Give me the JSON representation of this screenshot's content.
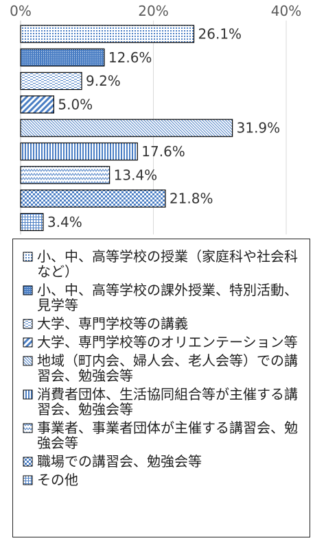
{
  "chart_data": {
    "type": "bar",
    "orientation": "horizontal",
    "categories": [
      "小、中、高等学校の授業（家庭科や社会科など）",
      "小、中、高等学校の課外授業、特別活動、見学等",
      "大学、専門学校等の講義",
      "大学、専門学校等のオリエンテーション等",
      "地域（町内会、婦人会、老人会等）での講習会、勉強会等",
      "消費者団体、生活協同組合等が主催する講習会、勉強会等",
      "事業者、事業者団体が主催する講習会、勉強会等",
      "職場での講習会、勉強会等",
      "その他"
    ],
    "values": [
      26.1,
      12.6,
      9.2,
      5.0,
      31.9,
      17.6,
      13.4,
      21.8,
      3.4
    ],
    "value_labels": [
      "26.1%",
      "12.6%",
      "9.2%",
      "5.0%",
      "31.9%",
      "17.6%",
      "13.4%",
      "21.8%",
      "3.4%"
    ],
    "xlim": [
      0,
      40
    ],
    "x_ticks": [
      "0%",
      "20%",
      "40%"
    ],
    "grid": true,
    "legend_position": "bottom",
    "title": "",
    "xlabel": "",
    "ylabel": "",
    "bar_fill": "#4a7ec4",
    "bar_edge": "#000000"
  },
  "legend": {
    "items": [
      {
        "text": "小、中、高等学校の授業（家庭科や社会科など）",
        "pattern": "dots"
      },
      {
        "text": "小、中、高等学校の課外授業、特別活動、見学等",
        "pattern": "dense-dots"
      },
      {
        "text": "大学、専門学校等の講義",
        "pattern": "dashes"
      },
      {
        "text": "大学、専門学校等のオリエンテーション等",
        "pattern": "diagonal-wide"
      },
      {
        "text": "地域（町内会、婦人会、老人会等）での講習会、勉強会等",
        "pattern": "diagonal-fine"
      },
      {
        "text": "消費者団体、生活協同組合等が主催する講習会、勉強会等",
        "pattern": "vertical-lines"
      },
      {
        "text": "事業者、事業者団体が主催する講習会、勉強会等",
        "pattern": "zigzag"
      },
      {
        "text": "職場での講習会、勉強会等",
        "pattern": "checker"
      },
      {
        "text": "その他",
        "pattern": "grid"
      }
    ]
  }
}
